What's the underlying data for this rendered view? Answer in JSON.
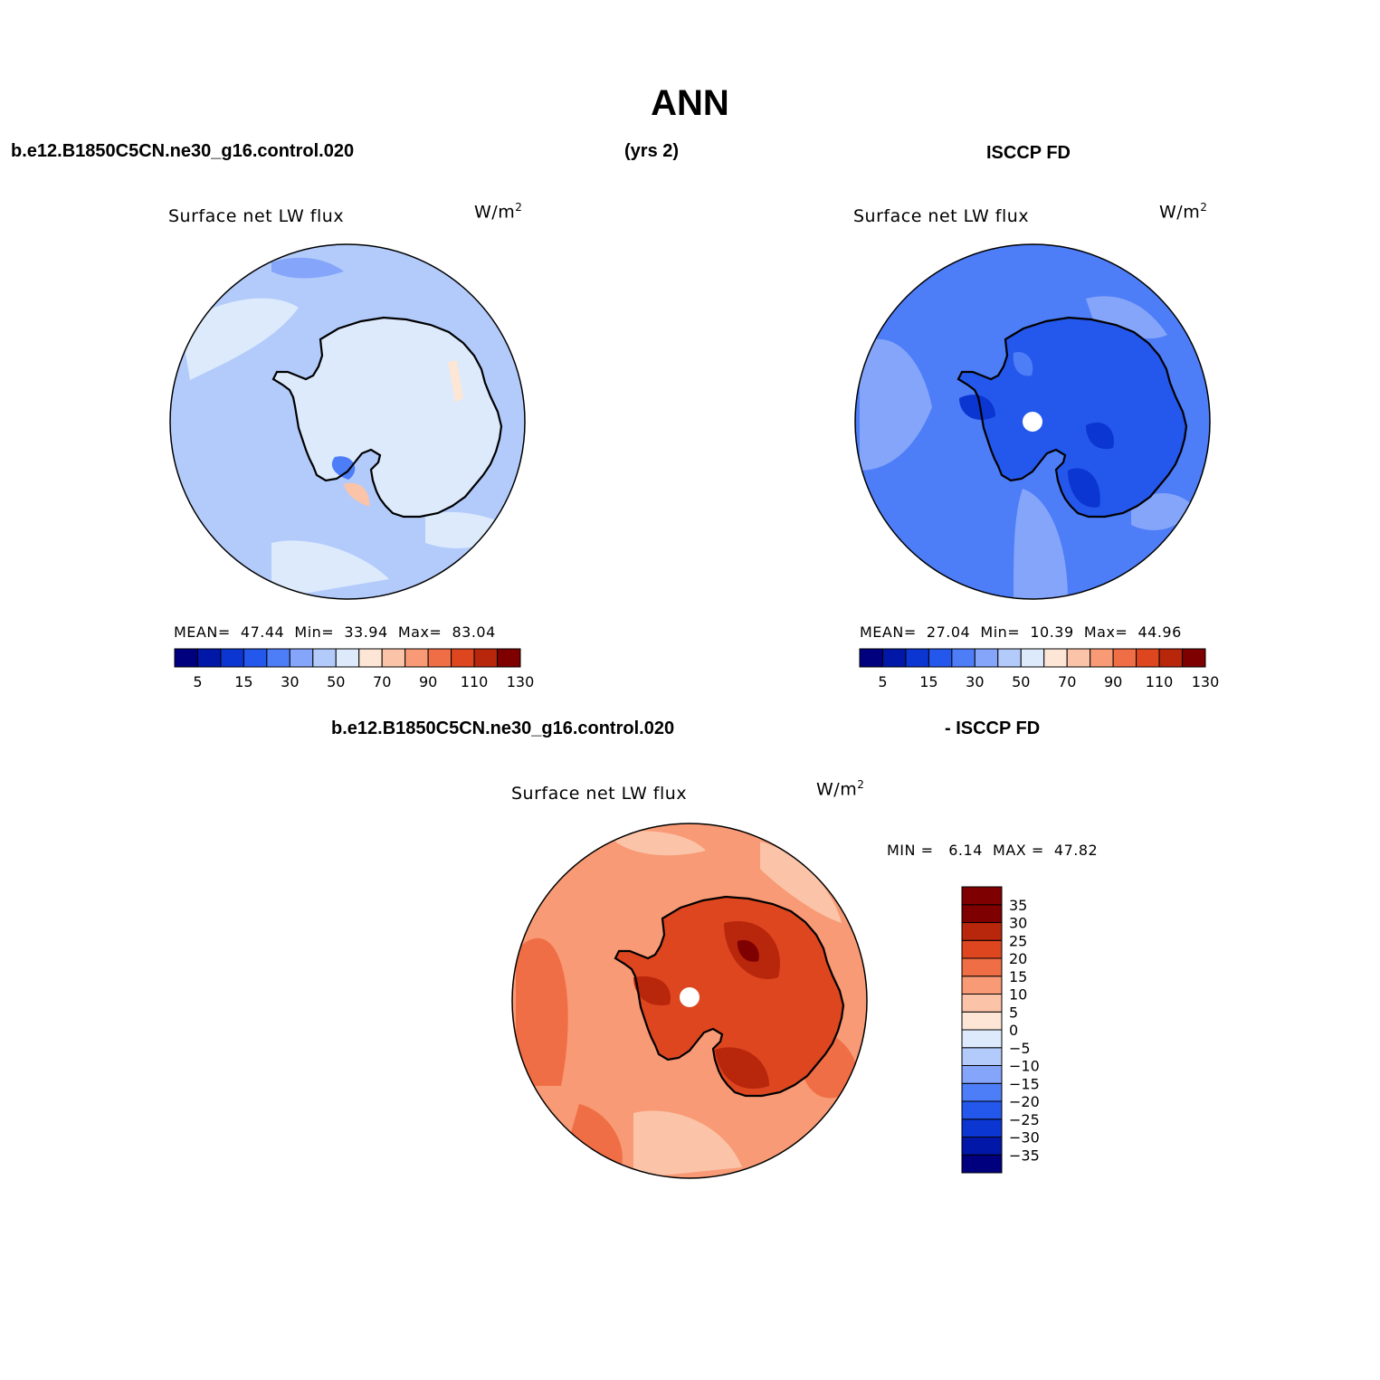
{
  "title": "ANN",
  "header": {
    "case": "b.e12.B1850C5CN.ne30_g16.control.020",
    "years": "(yrs 2)",
    "obs": "ISCCP FD"
  },
  "diff_header": {
    "case": "b.e12.B1850C5CN.ne30_g16.control.020",
    "obs": "- ISCCP FD"
  },
  "panels": [
    {
      "variable": "Surface net LW flux",
      "units": "W/m",
      "units_sup": "2",
      "stats_text": "MEAN=  47.44  Min=  33.94  Max=  83.04",
      "dominant_level": "40-45 W/m² light blue over ocean, 45-50 over continent interior",
      "colorbar_labels": [
        "5",
        "15",
        "30",
        "50",
        "70",
        "90",
        "110",
        "130"
      ]
    },
    {
      "variable": "Surface net LW flux",
      "units": "W/m",
      "units_sup": "2",
      "stats_text": "MEAN=  27.04  Min=  10.39  Max=  44.96",
      "dominant_level": "25-30 W/m² medium blue; 20-25 over continent",
      "colorbar_labels": [
        "5",
        "15",
        "30",
        "50",
        "70",
        "90",
        "110",
        "130"
      ]
    },
    {
      "variable": "Surface net LW flux",
      "units": "W/m",
      "units_sup": "2",
      "stats_text": "MIN =   6.14  MAX =  47.82",
      "dominant_level": "15-25 W/m² orange; 25-35+ dark red over continent",
      "colorbar_labels": [
        "35",
        "30",
        "25",
        "20",
        "15",
        "10",
        "5",
        "0",
        "−5",
        "−10",
        "−15",
        "−20",
        "−25",
        "−30",
        "−35"
      ]
    }
  ],
  "colors": {
    "abs_scale": [
      "#00007f",
      "#0017a8",
      "#0b36d1",
      "#2457ec",
      "#4d7df7",
      "#84a5fa",
      "#b3cbfb",
      "#dceafc",
      "#fde6d6",
      "#fbc4a8",
      "#f89a75",
      "#f06e45",
      "#de4620",
      "#b8260c",
      "#7f0000"
    ],
    "diff_scale": [
      "#00007f",
      "#0017a8",
      "#0b36d1",
      "#2457ec",
      "#4d7df7",
      "#84a5fa",
      "#b3cbfb",
      "#dceafc",
      "#fde6d6",
      "#fbc4a8",
      "#f89a75",
      "#f06e45",
      "#de4620",
      "#b8260c",
      "#7f0000",
      "#7f0000"
    ]
  }
}
